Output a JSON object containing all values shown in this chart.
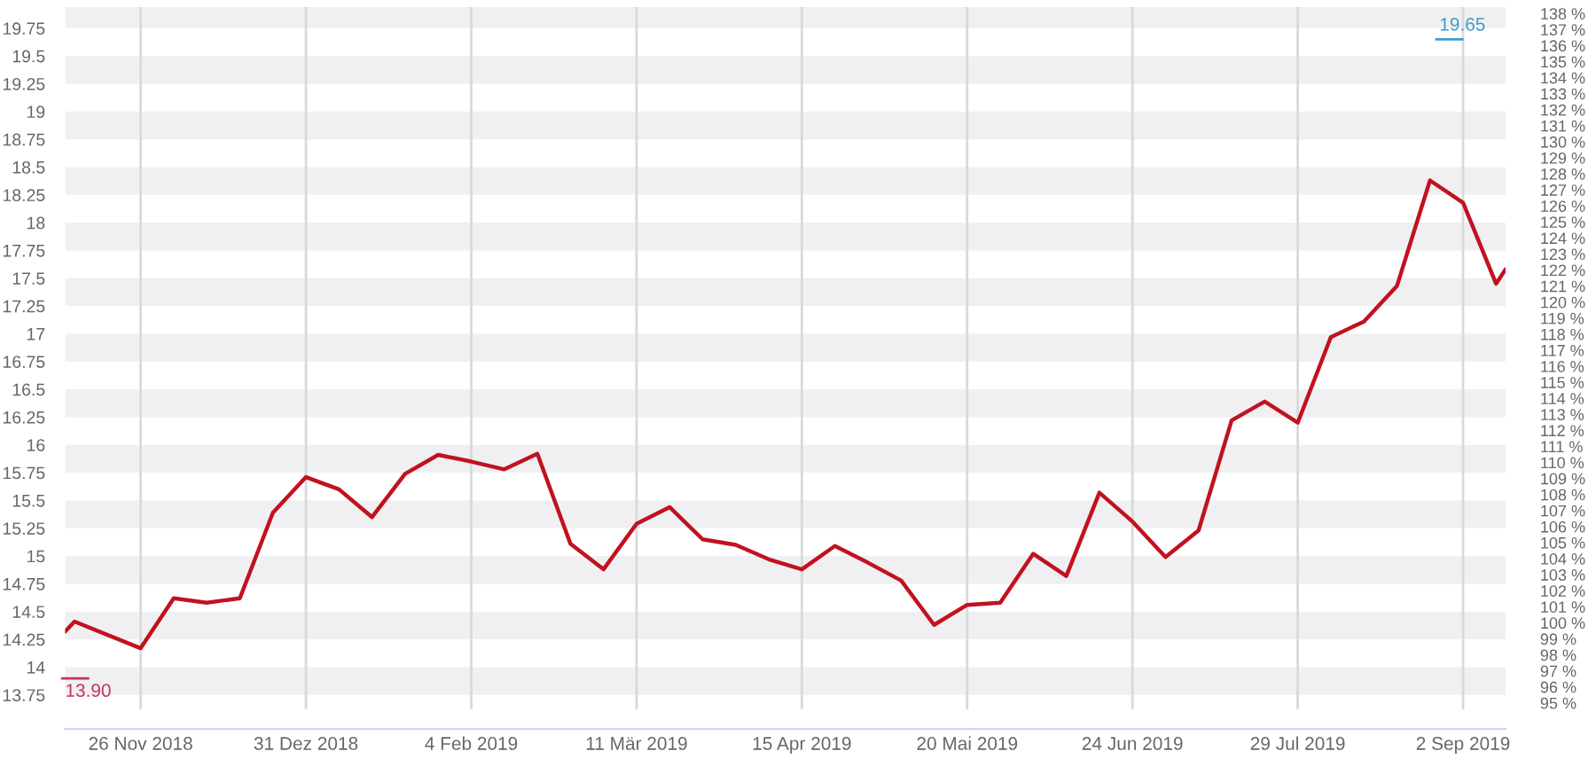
{
  "chart_data": {
    "type": "line",
    "x": [
      "2018-11-10",
      "2018-11-12",
      "2018-11-26",
      "2018-12-03",
      "2018-12-10",
      "2018-12-17",
      "2018-12-24",
      "2018-12-31",
      "2019-01-07",
      "2019-01-14",
      "2019-01-21",
      "2019-01-28",
      "2019-02-04",
      "2019-02-11",
      "2019-02-18",
      "2019-02-25",
      "2019-03-04",
      "2019-03-11",
      "2019-03-18",
      "2019-03-25",
      "2019-04-01",
      "2019-04-08",
      "2019-04-15",
      "2019-04-22",
      "2019-04-29",
      "2019-05-06",
      "2019-05-13",
      "2019-05-20",
      "2019-05-27",
      "2019-06-03",
      "2019-06-10",
      "2019-06-17",
      "2019-06-24",
      "2019-07-01",
      "2019-07-08",
      "2019-07-15",
      "2019-07-22",
      "2019-07-29",
      "2019-08-05",
      "2019-08-12",
      "2019-08-19",
      "2019-08-26",
      "2019-09-02",
      "2019-09-09",
      "2019-09-11"
    ],
    "series": [
      {
        "color": "#c1121f",
        "values": [
          14.32,
          14.41,
          14.17,
          14.62,
          14.58,
          14.62,
          15.39,
          15.71,
          15.6,
          15.35,
          15.74,
          15.91,
          15.85,
          15.78,
          15.92,
          15.11,
          14.88,
          15.29,
          15.44,
          15.15,
          15.1,
          14.97,
          14.88,
          15.09,
          14.94,
          14.78,
          14.38,
          14.56,
          14.58,
          15.02,
          14.82,
          15.57,
          15.31,
          14.99,
          15.23,
          16.22,
          16.39,
          16.2,
          16.97,
          17.11,
          17.43,
          18.38,
          18.18,
          17.45,
          17.58
        ]
      }
    ],
    "xlim": [
      "2018-11-10",
      "2019-09-11"
    ],
    "xticks": [
      {
        "value": "2018-11-26",
        "label": "26 Nov 2018"
      },
      {
        "value": "2018-12-31",
        "label": "31 Dez 2018"
      },
      {
        "value": "2019-02-04",
        "label": "4 Feb 2019"
      },
      {
        "value": "2019-03-11",
        "label": "11 Mär 2019"
      },
      {
        "value": "2019-04-15",
        "label": "15 Apr 2019"
      },
      {
        "value": "2019-05-20",
        "label": "20 Mai 2019"
      },
      {
        "value": "2019-06-24",
        "label": "24 Jun 2019"
      },
      {
        "value": "2019-07-29",
        "label": "29 Jul 2019"
      },
      {
        "value": "2019-09-02",
        "label": "2 Sep 2019"
      }
    ],
    "ylim": [
      13.62,
      19.94
    ],
    "yticks": [
      13.75,
      14,
      14.25,
      14.5,
      14.75,
      15,
      15.25,
      15.5,
      15.75,
      16,
      16.25,
      16.5,
      16.75,
      17,
      17.25,
      17.5,
      17.75,
      18,
      18.25,
      18.5,
      18.75,
      19,
      19.25,
      19.5,
      19.75
    ],
    "y2lim": [
      94.6,
      138.4
    ],
    "y2ticks": [
      {
        "value": 95,
        "label": "95 %"
      },
      {
        "value": 96,
        "label": "96 %"
      },
      {
        "value": 97,
        "label": "97 %"
      },
      {
        "value": 98,
        "label": "98 %"
      },
      {
        "value": 99,
        "label": "99 %"
      },
      {
        "value": 100,
        "label": "100 %"
      },
      {
        "value": 101,
        "label": "101 %"
      },
      {
        "value": 102,
        "label": "102 %"
      },
      {
        "value": 103,
        "label": "103 %"
      },
      {
        "value": 104,
        "label": "104 %"
      },
      {
        "value": 105,
        "label": "105 %"
      },
      {
        "value": 106,
        "label": "106 %"
      },
      {
        "value": 107,
        "label": "107 %"
      },
      {
        "value": 108,
        "label": "108 %"
      },
      {
        "value": 109,
        "label": "109 %"
      },
      {
        "value": 110,
        "label": "110 %"
      },
      {
        "value": 111,
        "label": "111 %"
      },
      {
        "value": 112,
        "label": "112 %"
      },
      {
        "value": 113,
        "label": "113 %"
      },
      {
        "value": 114,
        "label": "114 %"
      },
      {
        "value": 115,
        "label": "115 %"
      },
      {
        "value": 116,
        "label": "116 %"
      },
      {
        "value": 117,
        "label": "117 %"
      },
      {
        "value": 118,
        "label": "118 %"
      },
      {
        "value": 119,
        "label": "119 %"
      },
      {
        "value": 120,
        "label": "120 %"
      },
      {
        "value": 121,
        "label": "121 %"
      },
      {
        "value": 122,
        "label": "122 %"
      },
      {
        "value": 123,
        "label": "123 %"
      },
      {
        "value": 124,
        "label": "124 %"
      },
      {
        "value": 125,
        "label": "125 %"
      },
      {
        "value": 126,
        "label": "126 %"
      },
      {
        "value": 127,
        "label": "127 %"
      },
      {
        "value": 128,
        "label": "128 %"
      },
      {
        "value": 129,
        "label": "129 %"
      },
      {
        "value": 130,
        "label": "130 %"
      },
      {
        "value": 131,
        "label": "131 %"
      },
      {
        "value": 132,
        "label": "132 %"
      },
      {
        "value": 133,
        "label": "133 %"
      },
      {
        "value": 134,
        "label": "134 %"
      },
      {
        "value": 135,
        "label": "135 %"
      },
      {
        "value": 136,
        "label": "136 %"
      },
      {
        "value": 137,
        "label": "137 %"
      },
      {
        "value": 138,
        "label": "138 %"
      }
    ],
    "bands": [
      {
        "axis": "y",
        "from": 13.75,
        "to": 14,
        "color": "#f0f0f2"
      },
      {
        "axis": "y",
        "from": 14.25,
        "to": 14.5,
        "color": "#f0f0f2"
      },
      {
        "axis": "y",
        "from": 14.75,
        "to": 15,
        "color": "#f0f0f2"
      },
      {
        "axis": "y",
        "from": 15.25,
        "to": 15.5,
        "color": "#f0f0f2"
      },
      {
        "axis": "y",
        "from": 15.75,
        "to": 16,
        "color": "#f0f0f2"
      },
      {
        "axis": "y",
        "from": 16.25,
        "to": 16.5,
        "color": "#f0f0f2"
      },
      {
        "axis": "y",
        "from": 16.75,
        "to": 17,
        "color": "#f0f0f2"
      },
      {
        "axis": "y",
        "from": 17.25,
        "to": 17.5,
        "color": "#f0f0f2"
      },
      {
        "axis": "y",
        "from": 17.75,
        "to": 18,
        "color": "#f0f0f2"
      },
      {
        "axis": "y",
        "from": 18.25,
        "to": 18.5,
        "color": "#f0f0f2"
      },
      {
        "axis": "y",
        "from": 18.75,
        "to": 19,
        "color": "#f0f0f2"
      },
      {
        "axis": "y",
        "from": 19.25,
        "to": 19.5,
        "color": "#f0f0f2"
      },
      {
        "axis": "y",
        "from": 19.75,
        "to": 19.94,
        "color": "#f0f0f2"
      }
    ],
    "annotations": [
      "13.90",
      "19.65"
    ],
    "grid": "x"
  }
}
